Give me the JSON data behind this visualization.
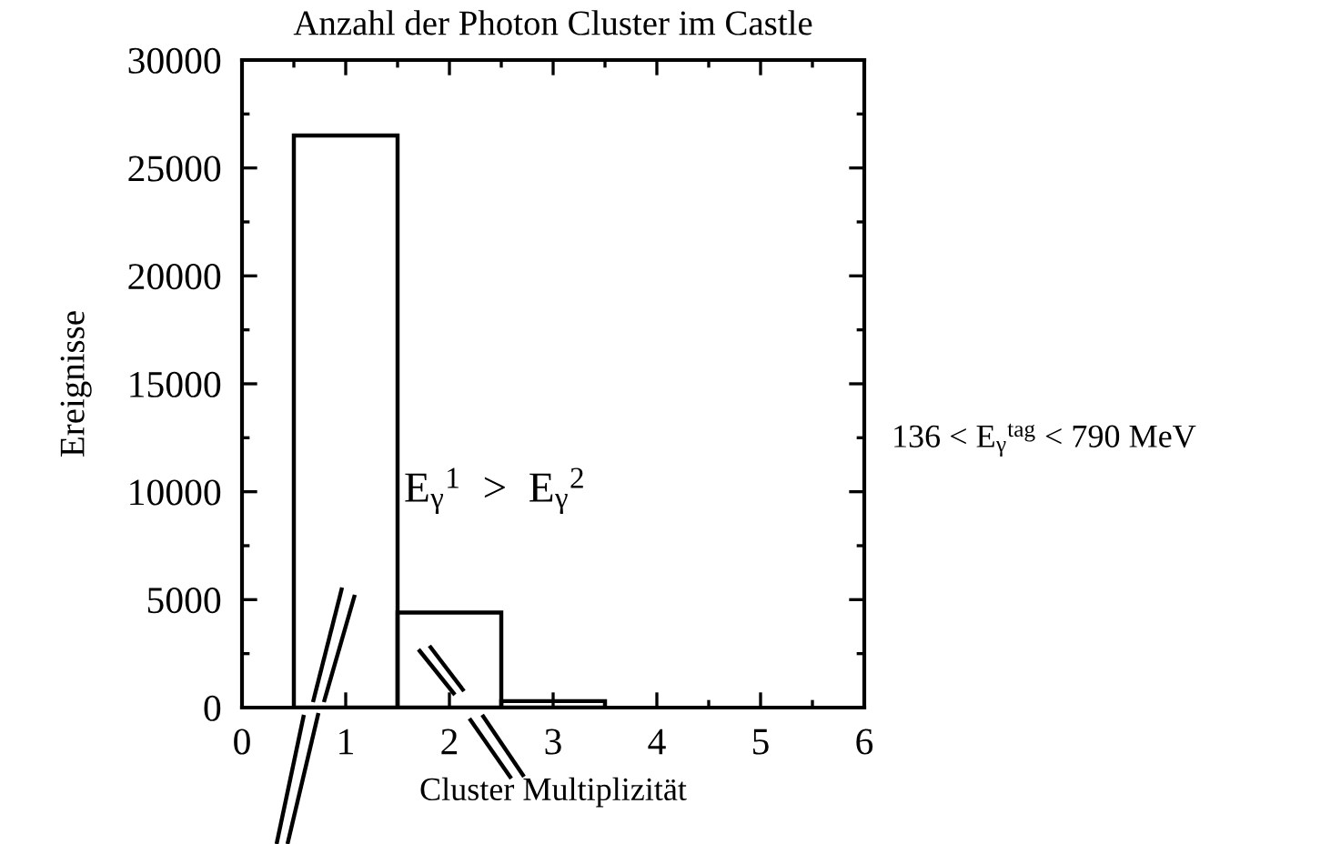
{
  "chart_data": {
    "type": "histogram",
    "title": "Anzahl der Photon Cluster im Castle",
    "xlabel": "Cluster Multiplizität",
    "ylabel": "Ereignisse",
    "bins": [
      0.5,
      1.5,
      2.5,
      3.5
    ],
    "values": [
      26500,
      4400,
      300
    ],
    "color": "#000000",
    "xlim": [
      0,
      6
    ],
    "xticks": [
      0,
      {
        "value": 0.5,
        "label": null
      },
      1,
      {
        "value": 1.5,
        "label": null
      },
      2,
      {
        "value": 2.5,
        "label": null
      },
      3,
      {
        "value": 3.5,
        "label": null
      },
      4,
      {
        "value": 4.5,
        "label": null
      },
      5,
      {
        "value": 5.5,
        "label": null
      },
      6
    ],
    "ylim": [
      0,
      30000
    ],
    "yticks": [
      0,
      {
        "value": 2500,
        "label": null
      },
      5000,
      {
        "value": 7500,
        "label": null
      },
      10000,
      {
        "value": 12500,
        "label": null
      },
      15000,
      {
        "value": 17500,
        "label": null
      },
      20000,
      {
        "value": 22500,
        "label": null
      },
      25000,
      {
        "value": 27500,
        "label": null
      },
      30000
    ],
    "annotations": [
      "E$_{γ}$$^{1}$  >  E$_{γ}$$^{2}$",
      "136 < E$_{γ}$$^{tag}$ < 790 MeV"
    ]
  }
}
